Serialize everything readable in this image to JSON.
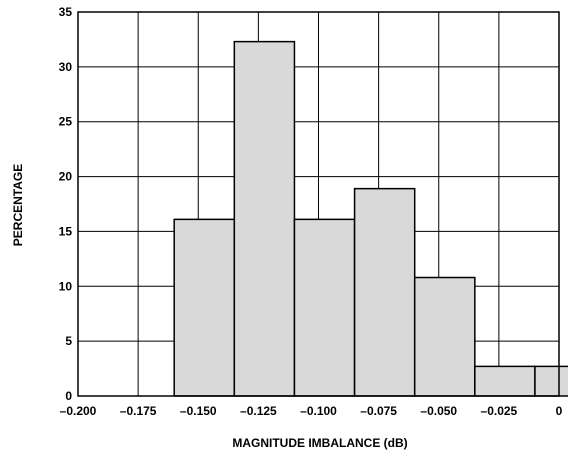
{
  "chart_data": {
    "type": "bar",
    "title": "",
    "xlabel": "MAGNITUDE IMBALANCE (dB)",
    "ylabel": "PERCENTAGE",
    "xlim": [
      -0.2,
      0
    ],
    "ylim": [
      0,
      35
    ],
    "x_ticks": [
      -0.2,
      -0.175,
      -0.15,
      -0.125,
      -0.1,
      -0.075,
      -0.05,
      -0.025,
      0
    ],
    "x_tick_labels": [
      "–0.200",
      "–0.175",
      "–0.150",
      "–0.125",
      "–0.100",
      "–0.075",
      "–0.050",
      "–0.025",
      "0"
    ],
    "y_ticks": [
      0,
      5,
      10,
      15,
      20,
      25,
      30,
      35
    ],
    "y_tick_labels": [
      "0",
      "5",
      "10",
      "15",
      "20",
      "25",
      "30",
      "35"
    ],
    "grid": true,
    "bars": [
      {
        "x_start": -0.16,
        "x_end": -0.135,
        "value": 16.1
      },
      {
        "x_start": -0.135,
        "x_end": -0.11,
        "value": 32.3
      },
      {
        "x_start": -0.11,
        "x_end": -0.085,
        "value": 16.1
      },
      {
        "x_start": -0.085,
        "x_end": -0.06,
        "value": 18.9
      },
      {
        "x_start": -0.06,
        "x_end": -0.035,
        "value": 10.8
      },
      {
        "x_start": -0.035,
        "x_end": -0.01,
        "value": 2.7
      },
      {
        "x_start": -0.01,
        "x_end": 0.015,
        "value": 2.7
      }
    ],
    "bar_color": "#d9d9d9"
  }
}
